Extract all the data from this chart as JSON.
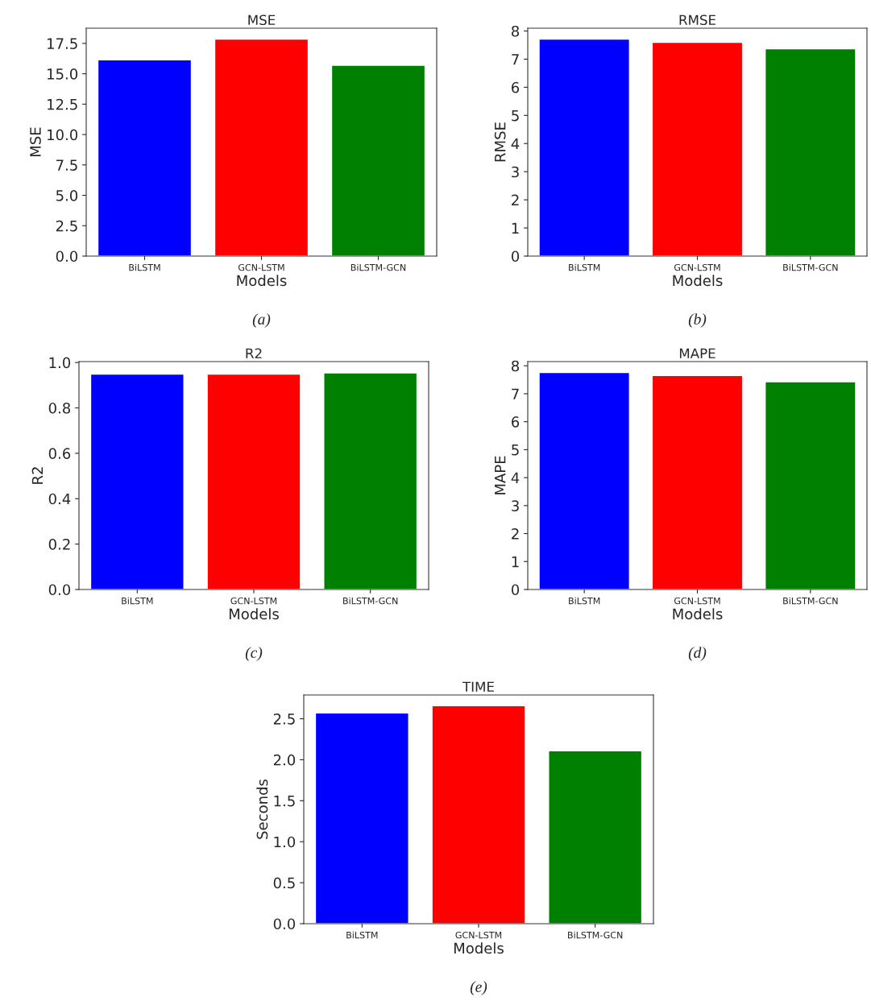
{
  "chart_data": [
    {
      "type": "bar",
      "title": "MSE",
      "xlabel": "Models",
      "ylabel": "MSE",
      "categories": [
        "BiLSTM",
        "GCN-LSTM",
        "BiLSTM-GCN"
      ],
      "colors": [
        "#0000ff",
        "#ff0000",
        "#008000"
      ],
      "values": [
        16.14,
        17.85,
        15.7
      ],
      "ylim": [
        0,
        18.75
      ],
      "yticks": [
        {
          "value": 0,
          "label": "0.0"
        },
        2.5,
        {
          "value": 5,
          "label": "5.0"
        },
        7.5,
        {
          "value": 10,
          "label": "10.0"
        },
        12.5,
        {
          "value": 15,
          "label": "15.0"
        },
        17.5
      ],
      "annotations": [
        "(a)"
      ]
    },
    {
      "type": "bar",
      "title": "RMSE",
      "xlabel": "Models",
      "ylabel": "RMSE",
      "categories": [
        "BiLSTM",
        "GCN-LSTM",
        "BiLSTM-GCN"
      ],
      "colors": [
        "#0000ff",
        "#ff0000",
        "#008000"
      ],
      "values": [
        7.71,
        7.6,
        7.37
      ],
      "ylim": [
        0,
        8.1
      ],
      "yticks": [
        0,
        1,
        2,
        3,
        4,
        5,
        6,
        7,
        8
      ],
      "annotations": [
        "(b)"
      ]
    },
    {
      "type": "bar",
      "title": "R2",
      "xlabel": "Models",
      "ylabel": "R2",
      "categories": [
        "BiLSTM",
        "GCN-LSTM",
        "BiLSTM-GCN"
      ],
      "colors": [
        "#0000ff",
        "#ff0000",
        "#008000"
      ],
      "values": [
        0.949,
        0.949,
        0.954
      ],
      "ylim": [
        0,
        1.004
      ],
      "yticks": [
        {
          "value": 0,
          "label": "0.0"
        },
        0.2,
        0.4,
        0.6,
        0.8,
        {
          "value": 1,
          "label": "1.0"
        }
      ],
      "annotations": [
        "(c)"
      ]
    },
    {
      "type": "bar",
      "title": "MAPE",
      "xlabel": "Models",
      "ylabel": "MAPE",
      "categories": [
        "BiLSTM",
        "GCN-LSTM",
        "BiLSTM-GCN"
      ],
      "colors": [
        "#0000ff",
        "#ff0000",
        "#008000"
      ],
      "values": [
        7.76,
        7.65,
        7.43
      ],
      "ylim": [
        0,
        8.15
      ],
      "yticks": [
        0,
        1,
        2,
        3,
        4,
        5,
        6,
        7,
        8
      ],
      "annotations": [
        "(d)"
      ]
    },
    {
      "type": "bar",
      "title": "TIME",
      "xlabel": "Models",
      "ylabel": "Seconds",
      "categories": [
        "BiLSTM",
        "GCN-LSTM",
        "BiLSTM-GCN"
      ],
      "colors": [
        "#0000ff",
        "#ff0000",
        "#008000"
      ],
      "values": [
        2.57,
        2.66,
        2.11
      ],
      "ylim": [
        0,
        2.79
      ],
      "yticks": [
        {
          "value": 0,
          "label": "0.0"
        },
        0.5,
        {
          "value": 1,
          "label": "1.0"
        },
        1.5,
        {
          "value": 2,
          "label": "2.0"
        },
        2.5
      ],
      "annotations": [
        "(e)"
      ]
    }
  ]
}
